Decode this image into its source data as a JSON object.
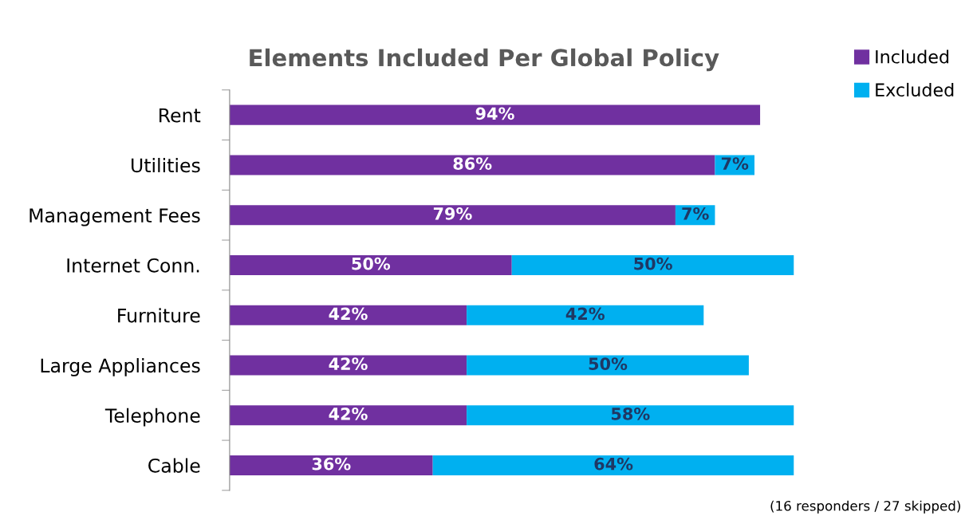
{
  "chart_data": {
    "type": "bar",
    "orientation": "horizontal",
    "stacked": true,
    "title": "Elements Included Per Global Policy",
    "categories": [
      "Rent",
      "Utilities",
      "Management Fees",
      "Internet Conn.",
      "Furniture",
      "Large Appliances",
      "Telephone",
      "Cable"
    ],
    "series": [
      {
        "name": "Included",
        "color": "#7030a0",
        "values": [
          94,
          86,
          79,
          50,
          42,
          42,
          42,
          36
        ],
        "value_labels": [
          "94%",
          "86%",
          "79%",
          "50%",
          "42%",
          "42%",
          "42%",
          "36%"
        ]
      },
      {
        "name": "Excluded",
        "color": "#00b0f0",
        "values": [
          null,
          7,
          7,
          50,
          42,
          50,
          58,
          64
        ],
        "value_labels": [
          null,
          "7%",
          "7%",
          "50%",
          "42%",
          "50%",
          "58%",
          "64%"
        ]
      }
    ],
    "legend": "top right",
    "grid": false,
    "annotations": [
      "(16 responders / 27 skipped)"
    ]
  }
}
